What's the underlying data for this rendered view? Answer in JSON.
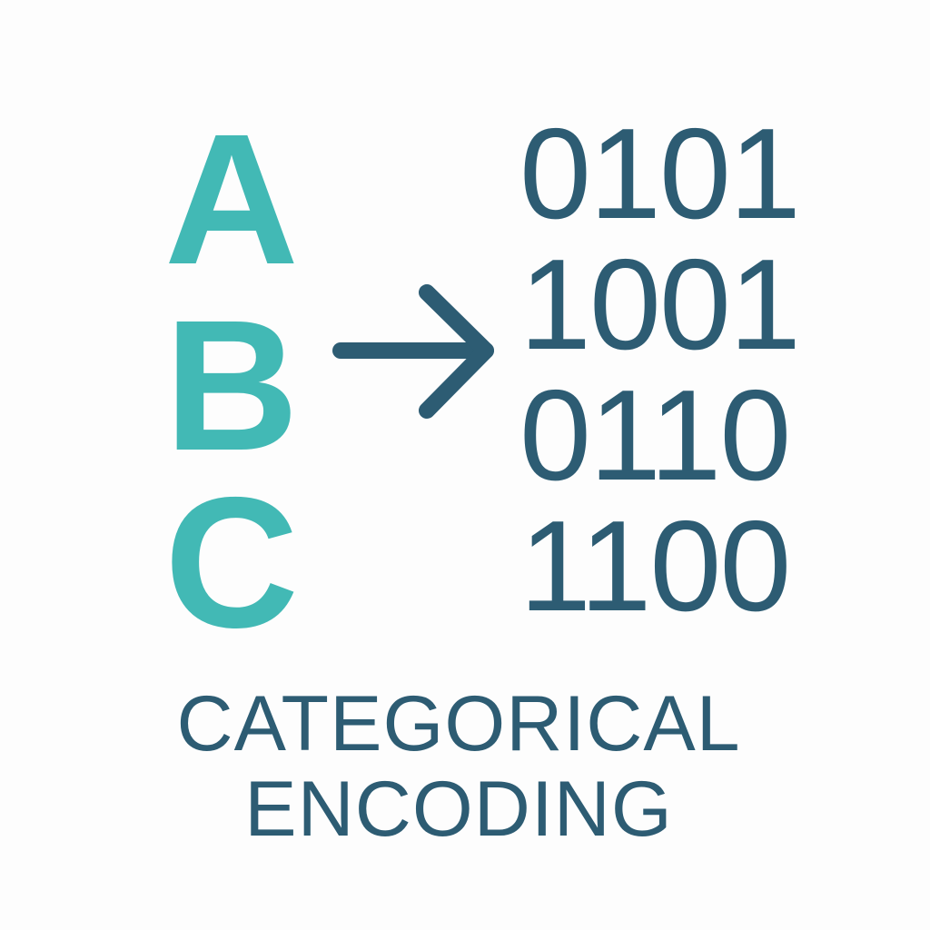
{
  "letters": [
    "A",
    "B",
    "C"
  ],
  "codes": [
    "0101",
    "1001",
    "0110",
    "1100"
  ],
  "caption": {
    "line1": "CATEGORICAL",
    "line2": "ENCODING"
  },
  "colors": {
    "letters": "#42b9b5",
    "codes": "#2d5c73",
    "arrow": "#2d5c73",
    "caption": "#2d5c73",
    "background": "#fdfdfd"
  },
  "icons": {
    "arrow": "arrow-right-icon"
  }
}
